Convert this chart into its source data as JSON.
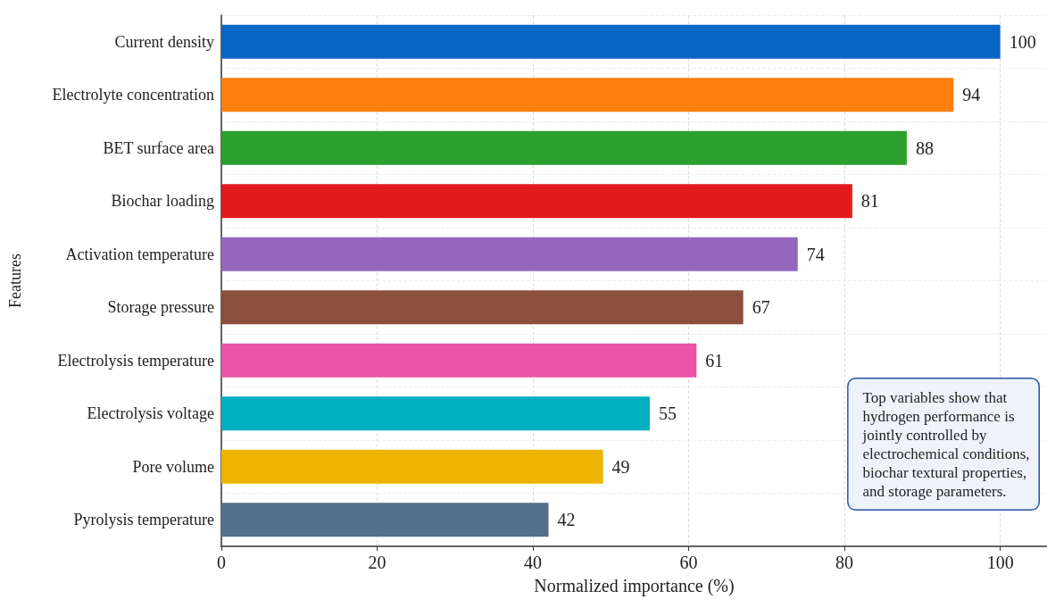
{
  "chart_data": {
    "type": "bar",
    "orientation": "horizontal",
    "xlabel": "Normalized importance (%)",
    "ylabel": "Features",
    "categories": [
      "Current density",
      "Electrolyte concentration",
      "BET surface area",
      "Biochar loading",
      "Activation temperature",
      "Storage pressure",
      "Electrolysis temperature",
      "Electrolysis voltage",
      "Pore volume",
      "Pyrolysis temperature"
    ],
    "values": [
      100,
      94,
      88,
      81,
      74,
      67,
      61,
      55,
      49,
      42
    ],
    "colors": [
      "#0a66c6",
      "#ff7f0e",
      "#2ca02c",
      "#e31a1c",
      "#9467bd",
      "#8c4f3d",
      "#ea55a8",
      "#00aec2",
      "#ecb400",
      "#536f8a"
    ],
    "xlim": [
      0,
      106
    ],
    "xticks": [
      0,
      20,
      40,
      60,
      80,
      100
    ],
    "grid": true,
    "data_labels": true,
    "annotations": [
      "Top variables show that\nhydrogen performance is\njointly controlled by\nelectrochemical conditions,\nbiochar textural properties,\nand storage parameters."
    ]
  }
}
